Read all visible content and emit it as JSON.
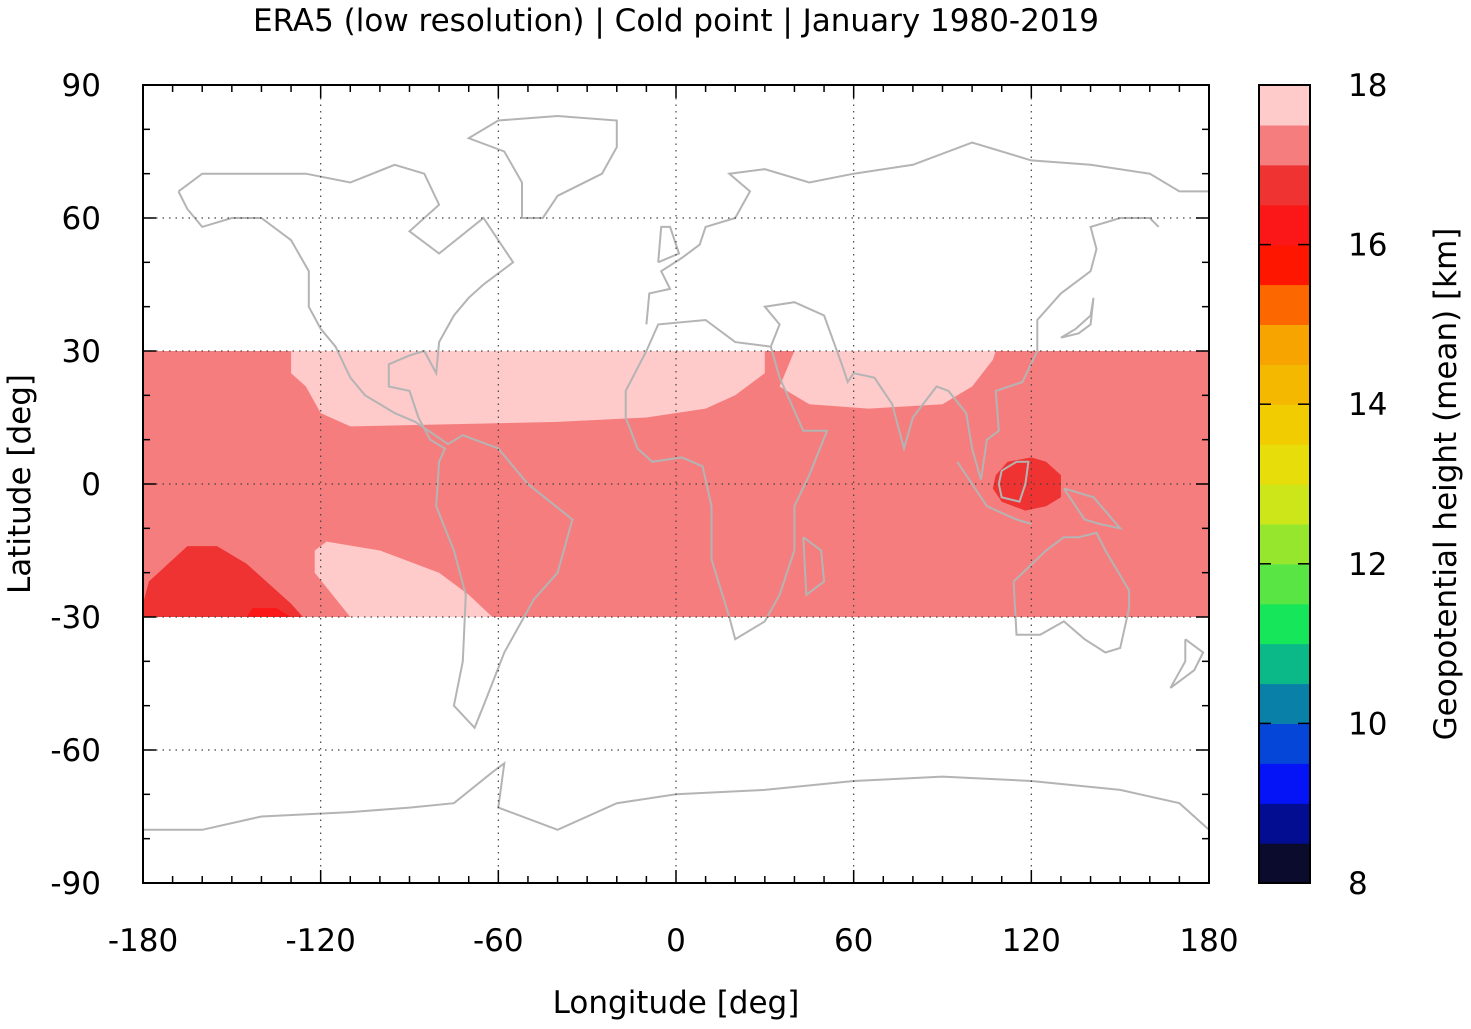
{
  "chart_data": {
    "type": "heatmap",
    "title": "ERA5 (low resolution) | Cold point | January 1980-2019",
    "xlabel": "Longitude [deg]",
    "ylabel": "Latitude [deg]",
    "xlim": [
      -180,
      180
    ],
    "ylim": [
      -90,
      90
    ],
    "x_ticks": [
      -180,
      -120,
      -60,
      0,
      60,
      120,
      180
    ],
    "y_ticks": [
      -90,
      -60,
      -30,
      0,
      30,
      60,
      90
    ],
    "x_tick_labels": [
      "-180",
      "-120",
      "-60",
      "0",
      "60",
      "120",
      "180"
    ],
    "y_tick_labels": [
      "-90",
      "-60",
      "-30",
      "0",
      "30",
      "60",
      "90"
    ],
    "grid": true,
    "data_lat_range": [
      -30,
      30
    ],
    "background_level_km": [
      17,
      17.5
    ],
    "regions": [
      {
        "level_km": [
          17.5,
          18
        ],
        "polygon": [
          [
            -130,
            30
          ],
          [
            -130,
            25
          ],
          [
            -125,
            22
          ],
          [
            -120,
            16
          ],
          [
            -110,
            13
          ],
          [
            -40,
            14
          ],
          [
            -10,
            15
          ],
          [
            10,
            17
          ],
          [
            20,
            20
          ],
          [
            30,
            25
          ],
          [
            30,
            30
          ]
        ]
      },
      {
        "level_km": [
          17.5,
          18
        ],
        "polygon": [
          [
            40,
            30
          ],
          [
            35,
            22
          ],
          [
            45,
            18
          ],
          [
            65,
            17
          ],
          [
            90,
            18
          ],
          [
            100,
            22
          ],
          [
            107,
            28
          ],
          [
            108,
            30
          ]
        ]
      },
      {
        "level_km": [
          17.5,
          18
        ],
        "polygon": [
          [
            -122,
            -15
          ],
          [
            -118,
            -13
          ],
          [
            -100,
            -15
          ],
          [
            -80,
            -20
          ],
          [
            -70,
            -25
          ],
          [
            -62,
            -30
          ],
          [
            -110,
            -30
          ],
          [
            -122,
            -20
          ]
        ]
      },
      {
        "level_km": [
          16.5,
          17
        ],
        "polygon": [
          [
            -180,
            -27
          ],
          [
            -178,
            -22
          ],
          [
            -165,
            -14
          ],
          [
            -155,
            -14
          ],
          [
            -145,
            -18
          ],
          [
            -130,
            -27
          ],
          [
            -126,
            -30
          ],
          [
            -180,
            -30
          ]
        ]
      },
      {
        "level_km": [
          16.5,
          17
        ],
        "polygon": [
          [
            108,
            2
          ],
          [
            112,
            5
          ],
          [
            120,
            6
          ],
          [
            125,
            5
          ],
          [
            130,
            2
          ],
          [
            130,
            -3
          ],
          [
            125,
            -5
          ],
          [
            118,
            -6
          ],
          [
            110,
            -4
          ],
          [
            107,
            -1
          ]
        ]
      },
      {
        "level_km": [
          16,
          16.5
        ],
        "polygon": [
          [
            -145,
            -30
          ],
          [
            -143,
            -28
          ],
          [
            -135,
            -28
          ],
          [
            -130,
            -30
          ]
        ]
      }
    ],
    "colorbar": {
      "label": "Geopotential height (mean) [km]",
      "min": 8,
      "max": 18,
      "tick_values": [
        8,
        10,
        12,
        14,
        16,
        18
      ],
      "tick_labels": [
        "8",
        "10",
        "12",
        "14",
        "16",
        "18"
      ],
      "levels": [
        8,
        8.5,
        9,
        9.5,
        10,
        10.5,
        11,
        11.5,
        12,
        12.5,
        13,
        13.5,
        14,
        14.5,
        15,
        15.5,
        16,
        16.5,
        17,
        17.5,
        18
      ],
      "colors": [
        "#0b0b2e",
        "#030d91",
        "#0414f7",
        "#0546d9",
        "#0880a8",
        "#0bb888",
        "#16e65a",
        "#59e645",
        "#96e62e",
        "#cce61a",
        "#e6dd0b",
        "#f0cc00",
        "#f4b800",
        "#f7a300",
        "#fd6700",
        "#ff1600",
        "#fb1717",
        "#ef3232",
        "#f67d7d",
        "#fecaca"
      ]
    },
    "coastline_color": "#b4b4b4"
  }
}
